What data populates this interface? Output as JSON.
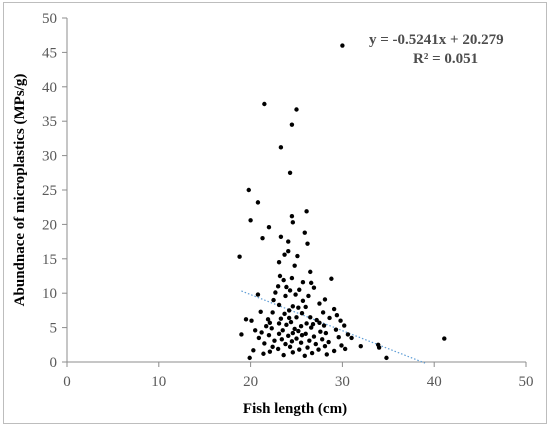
{
  "chart_data": {
    "type": "scatter",
    "title": "",
    "xlabel": "Fish length (cm)",
    "ylabel": "Abundnace of microplastics (MPs/g)",
    "xlim": [
      0,
      50
    ],
    "ylim": [
      0,
      50
    ],
    "xticks": [
      "0",
      "10",
      "20",
      "30",
      "40",
      "50"
    ],
    "yticks": [
      "0",
      "5",
      "10",
      "15",
      "20",
      "25",
      "30",
      "35",
      "40",
      "45",
      "50"
    ],
    "grid": false,
    "legend": "none",
    "colors": {
      "points": "#000000",
      "trendline": "#5b9bd5",
      "axis": "#8c8c8c"
    },
    "annotations": {
      "equation": "y = -0.5241x + 20.279",
      "r_squared": "R² = 0.051"
    },
    "trendline": {
      "slope": -0.5241,
      "intercept": 20.279,
      "x_range": [
        19,
        39
      ]
    },
    "points": [
      [
        30.0,
        46.0
      ],
      [
        21.5,
        37.5
      ],
      [
        25.0,
        36.7
      ],
      [
        24.5,
        34.5
      ],
      [
        23.3,
        31.2
      ],
      [
        24.3,
        27.5
      ],
      [
        19.8,
        25.0
      ],
      [
        20.0,
        20.6
      ],
      [
        20.8,
        23.2
      ],
      [
        22.0,
        19.6
      ],
      [
        21.3,
        18.0
      ],
      [
        24.5,
        21.2
      ],
      [
        26.1,
        21.9
      ],
      [
        24.6,
        20.3
      ],
      [
        23.3,
        18.2
      ],
      [
        24.1,
        17.5
      ],
      [
        25.9,
        18.8
      ],
      [
        26.2,
        17.2
      ],
      [
        23.7,
        15.6
      ],
      [
        24.1,
        16.1
      ],
      [
        25.1,
        15.4
      ],
      [
        18.8,
        15.3
      ],
      [
        23.1,
        14.5
      ],
      [
        24.8,
        14.0
      ],
      [
        26.5,
        13.1
      ],
      [
        23.2,
        12.5
      ],
      [
        24.5,
        12.2
      ],
      [
        28.8,
        12.1
      ],
      [
        23.6,
        11.9
      ],
      [
        25.7,
        11.6
      ],
      [
        26.6,
        11.5
      ],
      [
        23.0,
        11.0
      ],
      [
        23.9,
        10.9
      ],
      [
        24.3,
        10.4
      ],
      [
        25.3,
        10.5
      ],
      [
        26.9,
        10.8
      ],
      [
        22.7,
        10.1
      ],
      [
        23.8,
        9.6
      ],
      [
        24.9,
        9.8
      ],
      [
        20.8,
        9.8
      ],
      [
        26.3,
        9.6
      ],
      [
        28.1,
        9.1
      ],
      [
        22.5,
        9.0
      ],
      [
        25.7,
        8.9
      ],
      [
        27.5,
        8.5
      ],
      [
        23.1,
        8.3
      ],
      [
        24.6,
        8.1
      ],
      [
        26.0,
        8.0
      ],
      [
        25.2,
        7.9
      ],
      [
        24.2,
        7.5
      ],
      [
        29.1,
        7.7
      ],
      [
        27.9,
        7.2
      ],
      [
        21.1,
        7.3
      ],
      [
        22.4,
        7.2
      ],
      [
        23.7,
        7.0
      ],
      [
        25.6,
        7.1
      ],
      [
        29.4,
        6.8
      ],
      [
        19.5,
        6.2
      ],
      [
        20.1,
        6.0
      ],
      [
        24.2,
        6.4
      ],
      [
        26.5,
        6.5
      ],
      [
        21.9,
        6.2
      ],
      [
        23.3,
        6.3
      ],
      [
        25.0,
        6.5
      ],
      [
        27.2,
        6.1
      ],
      [
        28.6,
        6.4
      ],
      [
        29.8,
        6.0
      ],
      [
        22.1,
        5.7
      ],
      [
        23.1,
        5.6
      ],
      [
        24.4,
        5.8
      ],
      [
        26.1,
        5.6
      ],
      [
        27.5,
        5.7
      ],
      [
        30.2,
        5.3
      ],
      [
        21.7,
        5.2
      ],
      [
        23.9,
        5.4
      ],
      [
        25.5,
        5.2
      ],
      [
        26.8,
        5.5
      ],
      [
        28.0,
        5.3
      ],
      [
        22.3,
        4.9
      ],
      [
        24.8,
        4.8
      ],
      [
        26.6,
        5.0
      ],
      [
        29.3,
        4.7
      ],
      [
        20.5,
        4.6
      ],
      [
        23.5,
        4.6
      ],
      [
        25.2,
        4.5
      ],
      [
        27.6,
        4.4
      ],
      [
        21.2,
        4.3
      ],
      [
        23.1,
        4.1
      ],
      [
        24.6,
        4.2
      ],
      [
        26.0,
        4.1
      ],
      [
        28.2,
        4.2
      ],
      [
        30.6,
        4.0
      ],
      [
        19.0,
        4.0
      ],
      [
        22.0,
        3.9
      ],
      [
        24.1,
        3.8
      ],
      [
        25.6,
        3.9
      ],
      [
        26.9,
        3.7
      ],
      [
        29.6,
        3.6
      ],
      [
        20.9,
        3.5
      ],
      [
        23.4,
        3.3
      ],
      [
        25.0,
        3.4
      ],
      [
        27.8,
        3.3
      ],
      [
        31.0,
        3.5
      ],
      [
        22.6,
        3.1
      ],
      [
        24.5,
        3.0
      ],
      [
        26.4,
        3.1
      ],
      [
        28.5,
        2.9
      ],
      [
        41.1,
        3.4
      ],
      [
        21.5,
        2.7
      ],
      [
        23.8,
        2.6
      ],
      [
        25.5,
        2.8
      ],
      [
        27.1,
        2.6
      ],
      [
        29.9,
        2.4
      ],
      [
        33.9,
        2.5
      ],
      [
        22.4,
        2.2
      ],
      [
        24.3,
        2.2
      ],
      [
        26.2,
        2.1
      ],
      [
        28.1,
        2.3
      ],
      [
        32.0,
        2.3
      ],
      [
        34.0,
        2.1
      ],
      [
        23.0,
        1.9
      ],
      [
        25.3,
        1.8
      ],
      [
        27.4,
        1.8
      ],
      [
        30.3,
        1.9
      ],
      [
        20.3,
        1.7
      ],
      [
        22.1,
        1.5
      ],
      [
        24.6,
        1.4
      ],
      [
        26.7,
        1.3
      ],
      [
        29.1,
        1.6
      ],
      [
        21.4,
        1.2
      ],
      [
        23.6,
        1.0
      ],
      [
        25.9,
        0.9
      ],
      [
        28.3,
        1.1
      ],
      [
        34.8,
        0.6
      ],
      [
        19.9,
        0.6
      ]
    ]
  }
}
